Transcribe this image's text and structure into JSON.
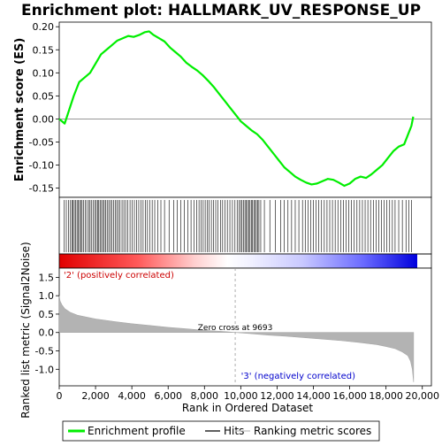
{
  "chart_data": {
    "type": "line",
    "title": "Enrichment plot: HALLMARK_UV_RESPONSE_UP",
    "panels": {
      "enrichment": {
        "ylabel": "Enrichment score (ES)",
        "ylim": [
          -0.17,
          0.21
        ],
        "yticks": [
          0.2,
          0.15,
          0.1,
          0.05,
          0.0,
          -0.05,
          -0.1,
          -0.15
        ],
        "ytick_labels": [
          "0.20",
          "0.15",
          "0.10",
          "0.05",
          "0.00",
          "-0.05",
          "-0.10",
          "-0.15"
        ],
        "series": [
          {
            "name": "Enrichment profile",
            "color": "#00ee00",
            "x": [
              0,
              300,
              550,
              800,
              1100,
              1400,
              1700,
              2000,
              2300,
              2600,
              2900,
              3200,
              3500,
              3800,
              4100,
              4400,
              4700,
              4950,
              5200,
              5500,
              5800,
              6100,
              6400,
              6700,
              7000,
              7300,
              7600,
              7900,
              8200,
              8500,
              8800,
              9100,
              9400,
              9700,
              10000,
              10300,
              10600,
              10900,
              11200,
              11500,
              11800,
              12100,
              12400,
              12700,
              13000,
              13300,
              13600,
              13900,
              14200,
              14500,
              14800,
              15100,
              15400,
              15700,
              16000,
              16300,
              16600,
              16900,
              17200,
              17500,
              17800,
              18100,
              18400,
              18700,
              19000,
              19200,
              19400,
              19500
            ],
            "y": [
              0.0,
              -0.01,
              0.02,
              0.05,
              0.08,
              0.09,
              0.1,
              0.12,
              0.14,
              0.15,
              0.16,
              0.17,
              0.175,
              0.18,
              0.178,
              0.182,
              0.188,
              0.19,
              0.182,
              0.175,
              0.168,
              0.155,
              0.145,
              0.135,
              0.122,
              0.113,
              0.105,
              0.095,
              0.083,
              0.07,
              0.055,
              0.04,
              0.025,
              0.01,
              -0.005,
              -0.015,
              -0.025,
              -0.033,
              -0.045,
              -0.06,
              -0.075,
              -0.09,
              -0.105,
              -0.115,
              -0.125,
              -0.132,
              -0.138,
              -0.142,
              -0.14,
              -0.135,
              -0.13,
              -0.132,
              -0.138,
              -0.145,
              -0.14,
              -0.13,
              -0.125,
              -0.128,
              -0.12,
              -0.11,
              -0.1,
              -0.085,
              -0.07,
              -0.06,
              -0.055,
              -0.035,
              -0.015,
              0.005
            ]
          }
        ]
      },
      "hits": {
        "label": "Hits",
        "positions": [
          280,
          390,
          520,
          620,
          700,
          760,
          830,
          900,
          980,
          1040,
          1120,
          1190,
          1260,
          1350,
          1430,
          1520,
          1620,
          1700,
          1790,
          1880,
          1960,
          2040,
          2110,
          2180,
          2250,
          2330,
          2400,
          2480,
          2560,
          2640,
          2730,
          2820,
          2900,
          2990,
          3080,
          3170,
          3260,
          3350,
          3460,
          3560,
          3660,
          3780,
          3900,
          4020,
          4140,
          4260,
          4380,
          4500,
          4620,
          4740,
          4860,
          4980,
          5120,
          5260,
          5420,
          5600,
          5800,
          6050,
          6300,
          6500,
          6700,
          6900,
          7080,
          7260,
          7420,
          7580,
          7700,
          7820,
          7930,
          8040,
          8150,
          8260,
          8380,
          8500,
          8620,
          8750,
          8880,
          9000,
          9130,
          9260,
          9400,
          9540,
          9680,
          9800,
          9900,
          9990,
          10070,
          10150,
          10230,
          10300,
          10370,
          10440,
          10510,
          10580,
          10650,
          10720,
          10790,
          10860,
          10930,
          11000,
          11100,
          11300,
          11600,
          11900,
          12200,
          12400,
          12600,
          12800,
          13000,
          13200,
          13400,
          13550,
          13700,
          13850,
          14000,
          14150,
          14300,
          14450,
          14600,
          14750,
          14900,
          15050,
          15200,
          15350,
          15500,
          15650,
          15800,
          15950,
          16100,
          16250,
          16400,
          16550,
          16700,
          16850,
          17000,
          17150,
          17300,
          17450,
          17600,
          17750,
          17900,
          18050,
          18200,
          18350,
          18500,
          18700,
          18900,
          19100,
          19250,
          19400
        ]
      },
      "ranked_metric": {
        "ylabel": "Ranked list metric (Signal2Noise)",
        "ylim": [
          -1.45,
          1.75
        ],
        "yticks": [
          1.5,
          1.0,
          0.5,
          0.0,
          -0.5,
          -1.0
        ],
        "ytick_labels": [
          "1.5",
          "1.0",
          "0.5",
          "0.0",
          "-0.5",
          "-1.0"
        ],
        "x": [
          0,
          50,
          150,
          300,
          600,
          1000,
          2000,
          3000,
          4000,
          5000,
          6000,
          7000,
          8000,
          9000,
          9693,
          10500,
          11500,
          12500,
          13500,
          14500,
          15500,
          16500,
          17500,
          18000,
          18500,
          18900,
          19200,
          19350,
          19450,
          19520
        ],
        "y": [
          1.0,
          0.85,
          0.75,
          0.65,
          0.55,
          0.47,
          0.37,
          0.3,
          0.24,
          0.19,
          0.14,
          0.1,
          0.06,
          0.03,
          0.0,
          -0.03,
          -0.07,
          -0.1,
          -0.14,
          -0.18,
          -0.22,
          -0.27,
          -0.33,
          -0.38,
          -0.44,
          -0.53,
          -0.63,
          -0.78,
          -1.0,
          -1.35
        ],
        "zero_cross_label": "Zero cross at 9693",
        "zero_cross_x": 9693,
        "positive_label": "'2' (positively correlated)",
        "negative_label": "'3' (negatively correlated)"
      }
    },
    "xlabel": "Rank in Ordered Dataset",
    "xlim": [
      0,
      20500
    ],
    "xticks": [
      0,
      2000,
      4000,
      6000,
      8000,
      10000,
      12000,
      14000,
      16000,
      18000,
      20000
    ],
    "xtick_labels": [
      "0",
      "2,000",
      "4,000",
      "6,000",
      "8,000",
      "10,000",
      "12,000",
      "14,000",
      "16,000",
      "18,000",
      "20,000"
    ],
    "legend": {
      "placement": "bottom",
      "entries": [
        {
          "name": "Enrichment profile",
          "color": "#00ee00"
        },
        {
          "name": "Hits",
          "color": "#000000"
        },
        {
          "name": "Ranking metric scores",
          "color": "#c0c0c0"
        }
      ]
    },
    "colors": {
      "profile": "#00ee00",
      "positive_text": "#cc0000",
      "negative_text": "#0000cc",
      "metric_fill": "#b3b3b3",
      "heat_red": "#ff0000",
      "heat_blue": "#0000ff"
    }
  }
}
